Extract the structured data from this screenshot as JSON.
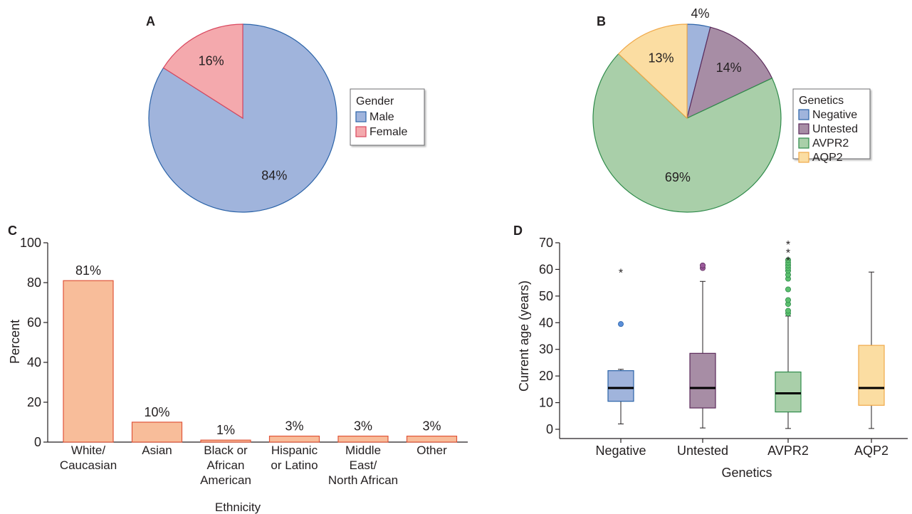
{
  "chart_data": [
    {
      "panel": "A",
      "type": "pie",
      "legend_title": "Gender",
      "legend_position": "right",
      "slices": [
        {
          "label": "Male",
          "value": 84,
          "display": "84%",
          "color": "#a0b4dc",
          "stroke": "#2b63a8"
        },
        {
          "label": "Female",
          "value": 16,
          "display": "16%",
          "color": "#f4a9ad",
          "stroke": "#d9485f"
        }
      ]
    },
    {
      "panel": "B",
      "type": "pie",
      "legend_title": "Genetics",
      "legend_position": "right",
      "slices": [
        {
          "label": "Negative",
          "value": 4,
          "display": "4%",
          "color": "#a0b4dc",
          "stroke": "#2b63a8"
        },
        {
          "label": "Untested",
          "value": 14,
          "display": "14%",
          "color": "#a78da5",
          "stroke": "#5b2a5a"
        },
        {
          "label": "AVPR2",
          "value": 69,
          "display": "69%",
          "color": "#a9cfa9",
          "stroke": "#2e8b4a"
        },
        {
          "label": "AQP2",
          "value": 13,
          "display": "13%",
          "color": "#fbdda2",
          "stroke": "#f0a94a"
        }
      ]
    },
    {
      "panel": "C",
      "type": "bar",
      "categories": [
        "White/\nCaucasian",
        "Asian",
        "Black or\nAfrican\nAmerican",
        "Hispanic\nor Latino",
        "Middle\nEast/\nNorth African",
        "Other"
      ],
      "values": [
        81,
        10,
        1,
        3,
        3,
        3
      ],
      "value_labels": [
        "81%",
        "10%",
        "1%",
        "3%",
        "3%",
        "3%"
      ],
      "xlabel": "Ethnicity",
      "ylabel": "Percent",
      "ylim": [
        0,
        100
      ],
      "yticks": [
        0,
        20,
        40,
        60,
        80,
        100
      ],
      "bar_color": "#f8bd9a",
      "bar_stroke": "#e0553a",
      "grid": false
    },
    {
      "panel": "D",
      "type": "box",
      "categories": [
        "Negative",
        "Untested",
        "AVPR2",
        "AQP2"
      ],
      "xlabel": "Genetics",
      "ylabel": "Current age (years)",
      "ylim": [
        0,
        70
      ],
      "yticks": [
        0,
        10,
        20,
        30,
        40,
        50,
        60,
        70
      ],
      "grid": false,
      "boxes": [
        {
          "name": "Negative",
          "min": 2,
          "q1": 10.5,
          "median": 15.5,
          "q3": 22,
          "max": 22.5,
          "outliers": [
            39.5
          ],
          "extremes": [
            60
          ],
          "fill": "#a0b4dc",
          "stroke": "#2b63a8",
          "point_fill": "#5b8fd9"
        },
        {
          "name": "Untested",
          "min": 0.5,
          "q1": 8,
          "median": 15.5,
          "q3": 28.5,
          "max": 55.5,
          "outliers": [
            60.5,
            61.5
          ],
          "extremes": [],
          "fill": "#a78da5",
          "stroke": "#5b2a5a",
          "point_fill": "#9b5a9b"
        },
        {
          "name": "AVPR2",
          "min": 0.3,
          "q1": 6.5,
          "median": 13.5,
          "q3": 21.5,
          "max": 42.5,
          "outliers": [
            43.5,
            44.5,
            47,
            48.5,
            52.5,
            56.5,
            58,
            59.5,
            60.5,
            61.5,
            62.5,
            63.5
          ],
          "extremes": [
            64.5,
            67.5,
            70.5
          ],
          "fill": "#a9cfa9",
          "stroke": "#2e8b4a",
          "point_fill": "#5cbf6e"
        },
        {
          "name": "AQP2",
          "min": 0.3,
          "q1": 9,
          "median": 15.5,
          "q3": 31.5,
          "max": 59,
          "outliers": [],
          "extremes": [],
          "fill": "#fbdda2",
          "stroke": "#f0a94a",
          "point_fill": "#f0a94a"
        }
      ]
    }
  ]
}
